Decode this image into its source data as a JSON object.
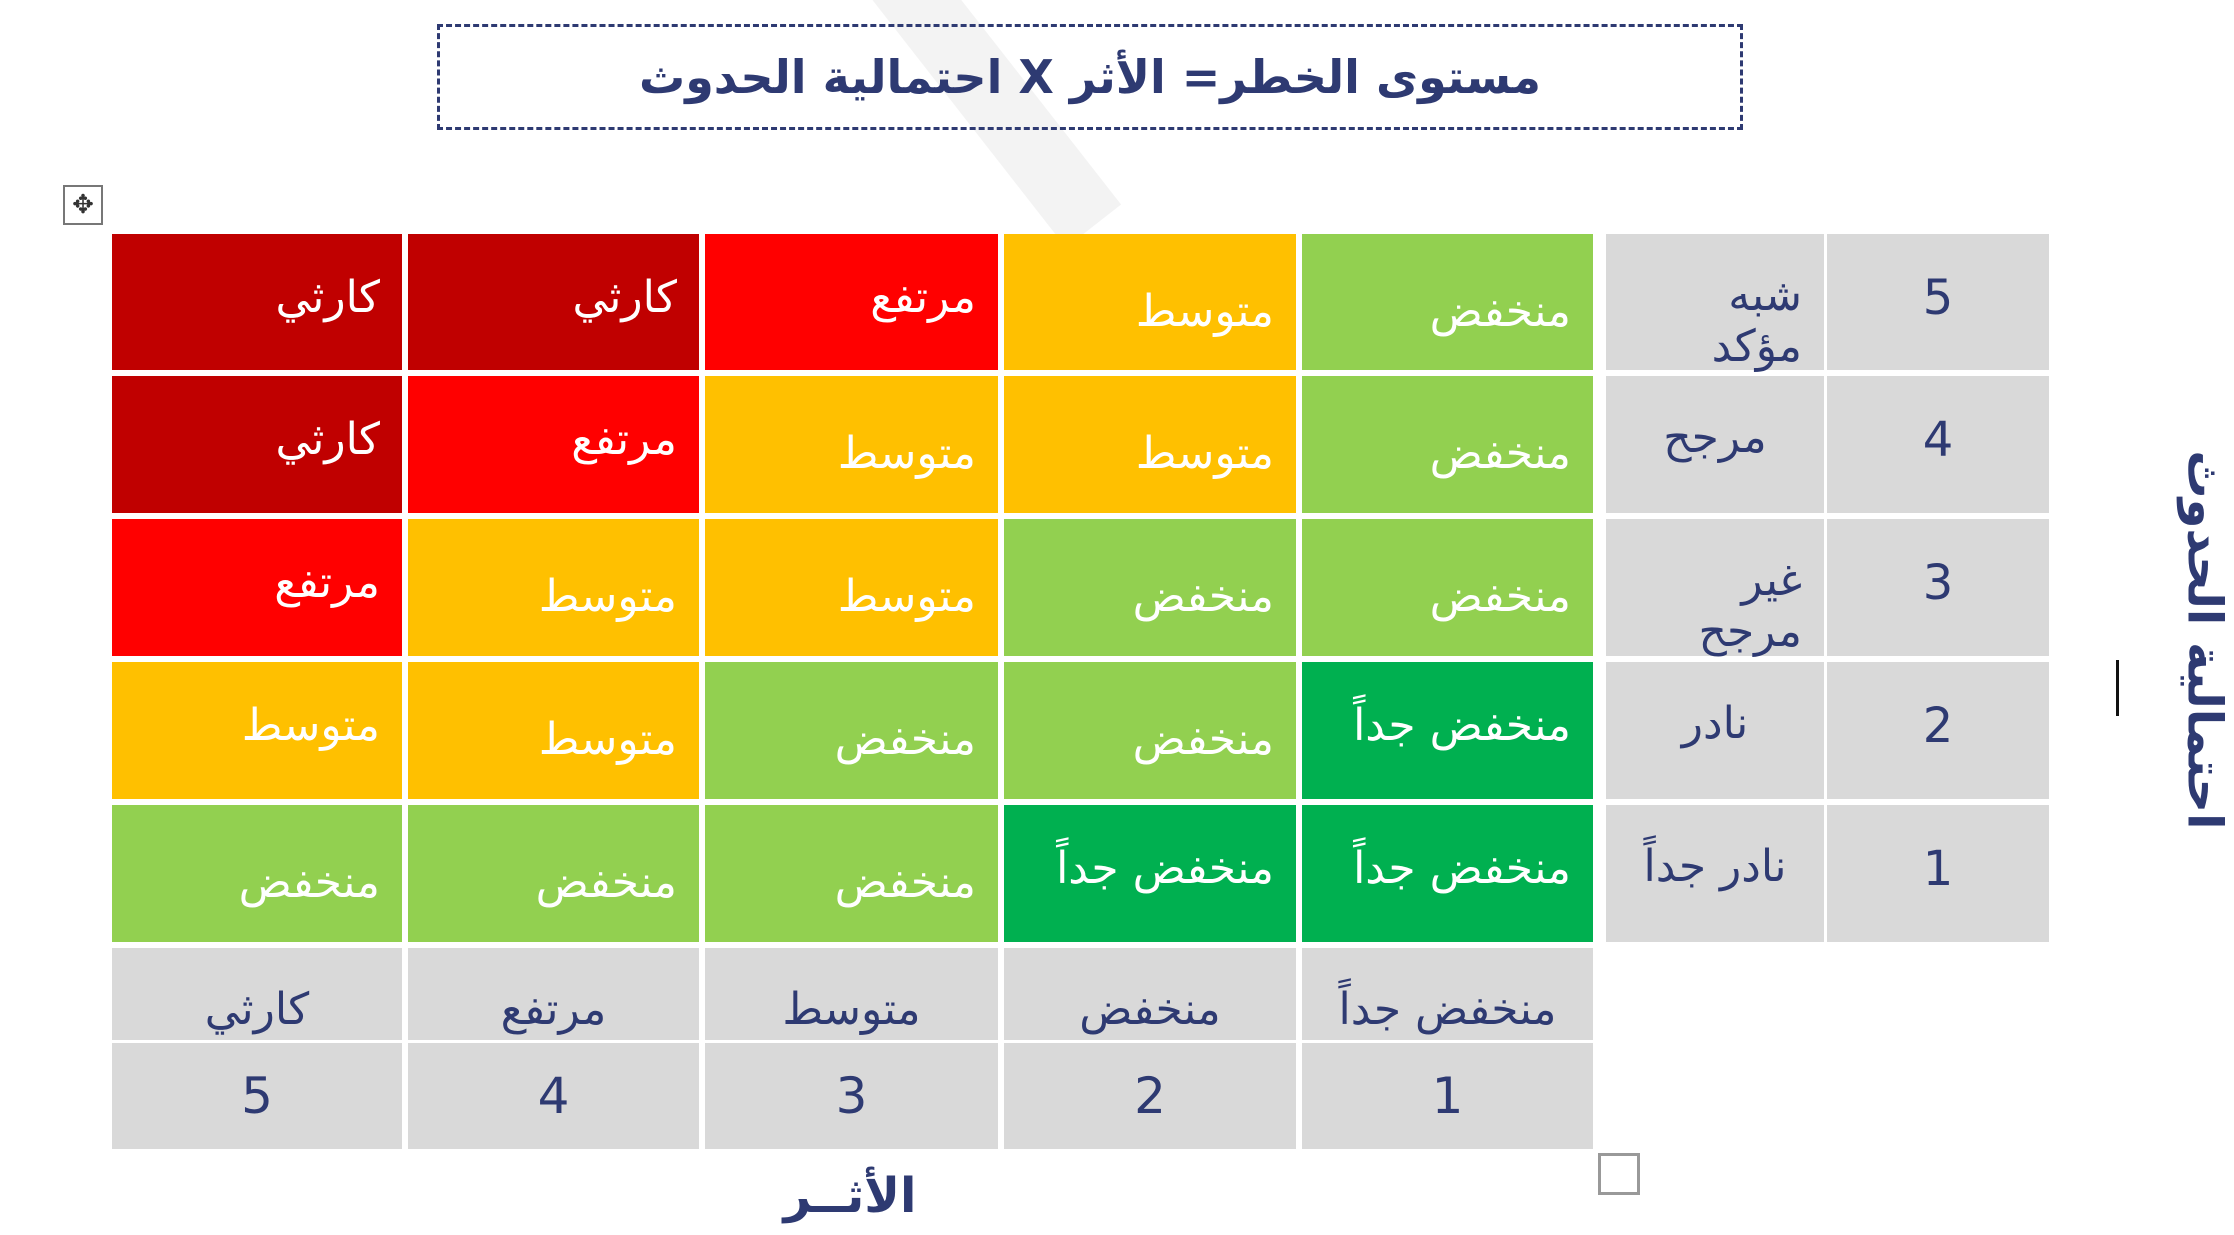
{
  "title": "مستوى الخطر= الأثر X احتمالية الحدوث",
  "y_axis_label": "احتمالية الحدوث",
  "x_axis_label": "الأثــر",
  "colors": {
    "very_low": "#00b050",
    "low": "#92d050",
    "medium": "#ffc000",
    "high": "#ff0000",
    "catastrophic": "#c00000",
    "header": "#d9d9d9",
    "text_dark": "#2e3a72"
  },
  "likelihood_levels": [
    {
      "number": "5",
      "label": "شبه مؤكد"
    },
    {
      "number": "4",
      "label": "مرجح"
    },
    {
      "number": "3",
      "label": "غير مرجح"
    },
    {
      "number": "2",
      "label": "نادر"
    },
    {
      "number": "1",
      "label": "نادر جداً"
    }
  ],
  "impact_levels": [
    {
      "number": "1",
      "label": "منخفض جداً"
    },
    {
      "number": "2",
      "label": "منخفض"
    },
    {
      "number": "3",
      "label": "متوسط"
    },
    {
      "number": "4",
      "label": "مرتفع"
    },
    {
      "number": "5",
      "label": "كارثي"
    }
  ],
  "matrix": [
    [
      {
        "text": "منخفض",
        "level": "low"
      },
      {
        "text": "متوسط",
        "level": "medium"
      },
      {
        "text": "مرتفع",
        "level": "high"
      },
      {
        "text": "كارثي",
        "level": "catastrophic"
      },
      {
        "text": "كارثي",
        "level": "catastrophic"
      }
    ],
    [
      {
        "text": "منخفض",
        "level": "low"
      },
      {
        "text": "متوسط",
        "level": "medium"
      },
      {
        "text": "متوسط",
        "level": "medium"
      },
      {
        "text": "مرتفع",
        "level": "high"
      },
      {
        "text": "كارثي",
        "level": "catastrophic"
      }
    ],
    [
      {
        "text": "منخفض",
        "level": "low"
      },
      {
        "text": "منخفض",
        "level": "low"
      },
      {
        "text": "متوسط",
        "level": "medium"
      },
      {
        "text": "متوسط",
        "level": "medium"
      },
      {
        "text": "مرتفع",
        "level": "high"
      }
    ],
    [
      {
        "text": "منخفض جداً",
        "level": "very_low"
      },
      {
        "text": "منخفض",
        "level": "low"
      },
      {
        "text": "منخفض",
        "level": "low"
      },
      {
        "text": "متوسط",
        "level": "medium"
      },
      {
        "text": "متوسط",
        "level": "medium"
      }
    ],
    [
      {
        "text": "منخفض جداً",
        "level": "very_low"
      },
      {
        "text": "منخفض جداً",
        "level": "very_low"
      },
      {
        "text": "منخفض",
        "level": "low"
      },
      {
        "text": "منخفض",
        "level": "low"
      },
      {
        "text": "منخفض",
        "level": "low"
      }
    ]
  ]
}
